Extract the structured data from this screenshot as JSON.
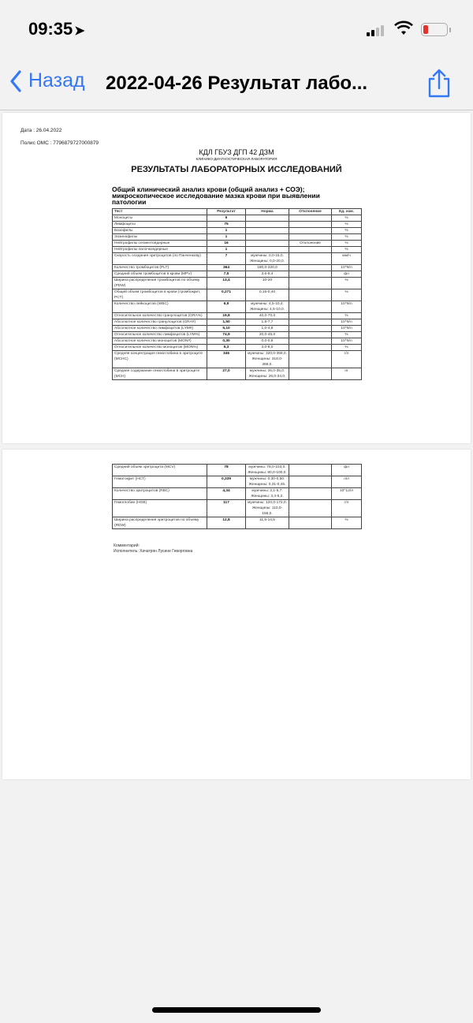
{
  "status": {
    "time": "09:35",
    "battery_level": 0.15
  },
  "nav": {
    "back_label": "Назад",
    "title": "2022-04-26 Результат лабо..."
  },
  "document": {
    "date": "Дата : 26.04.2022",
    "policy": "Полис ОМС : 7796879727000879",
    "org": "КДЛ ГБУЗ ДГП 42 ДЗМ",
    "lab": "КЛИНИКО-ДИАГНОСТИЧЕСКАЯ ЛАБОРАТОРИЯ",
    "heading": "РЕЗУЛЬТАТЫ ЛАБОРАТОРНЫХ ИССЛЕДОВАНИЙ",
    "section": "Общий клинический анализ крови (общий анализ + СОЭ); микроскопическое исследование мазка крови при выявлении патологии",
    "columns": [
      "Тест",
      "Результат",
      "Норма",
      "Отклонение",
      "Ед. изм."
    ],
    "rows_page1": [
      [
        "Моноциты",
        "6",
        "",
        "",
        "%"
      ],
      [
        "Лимфоциты",
        "75",
        "",
        "",
        "%"
      ],
      [
        "Базофилы",
        "1",
        "",
        "",
        "%"
      ],
      [
        "Эозинофилы",
        "1",
        "",
        "",
        "%"
      ],
      [
        "Нейтрофилы сегментоядерные",
        "16",
        "",
        "Отклонение",
        "%"
      ],
      [
        "Нейтрофилы палочкоядерные",
        "1",
        "",
        "",
        "%"
      ],
      [
        "Скорость оседания эритроцитов (по Панченкову)",
        "7",
        "мужчины: 0,0-15,0. Женщины: 0,0-20,0.",
        "",
        "мм/ч"
      ],
      [
        "Количество тромбоцитов (PLT)",
        "364",
        "180,0-320,0",
        "",
        "10^9/л"
      ],
      [
        "Средний объем тромбоцитов в крови (MPV)",
        "7,5",
        "3,6-9,4",
        "",
        "фл"
      ],
      [
        "Ширина распределения тромбоцитов по объему (PDW)",
        "13,4",
        "10-20",
        "",
        "%"
      ],
      [
        "Общий объем тромбоцитов в крови (тромбокрит, PCT)",
        "0,271",
        "0,15-0,40",
        "",
        "%"
      ],
      [
        "Количество лейкоцитов (WBC)",
        "6,9",
        "мужчины: 4,5-10,4. Женщины: 4,5-10,0.",
        "",
        "10^9/л"
      ],
      [
        "Относительное количество гранулоцитов (GRA%)",
        "19,8",
        "40,0-70,0",
        "",
        "%"
      ],
      [
        "Абсолютное количество гранулоцитов (GRA#)",
        "1,50",
        "1,8-7,7",
        "",
        "10^9/л"
      ],
      [
        "Абсолютное количество лимфоцитов (LYM#)",
        "5,10",
        "1,0-4,8",
        "",
        "10^9/л"
      ],
      [
        "Относительное количество лимфоцитов (LYM%)",
        "74,9",
        "20,0-45,0",
        "",
        "%"
      ],
      [
        "Абсолютное количество моноцитов (MON#)",
        "0,30",
        "0,0-0,8",
        "",
        "10^9/л"
      ],
      [
        "Относительное количество моноцитов (MON%)",
        "5,3",
        "3,0-8,0",
        "",
        "%"
      ],
      [
        "Средняя концентрация гемоглобина в эритроците (MCHC)",
        "346",
        "мужчины: 320,0-369,0. Женщины: 318,0-368,0.",
        "",
        "г/л"
      ],
      [
        "Среднее содержание гемоглобина в эритроците (MCH)",
        "27,0",
        "мужчины: 26,0-35,0. Женщины: 26,0-34,0.",
        "",
        "пг"
      ]
    ],
    "rows_page2": [
      [
        "Средний объем эритроцита (MCV)",
        "78",
        "мужчины: 78,0-103,0. Женщины: 80,0-100,0.",
        "",
        "фл"
      ],
      [
        "Гематокрит (HCT)",
        "0,339",
        "мужчины: 0,30-0,50. Женщины: 0,31-0,45.",
        "",
        "л/л"
      ],
      [
        "Количество эритроцитов (RBC)",
        "4,34",
        "мужчины: 3,1-5,7. Женщины: 3,4-5,2.",
        "",
        "10^12/л"
      ],
      [
        "Гемоглобин (HGB)",
        "117",
        "мужчины: 120,0-172,0. Женщины: 110,0-156,0.",
        "",
        "г/л"
      ],
      [
        "Ширина распределения эритроцитов по объему (RDW)",
        "12,8",
        "11,5-14,5",
        "",
        "%"
      ]
    ],
    "comment": "Комментарий:",
    "performer": "Исполнитель: Хачатрян Лусине Геворговна"
  }
}
